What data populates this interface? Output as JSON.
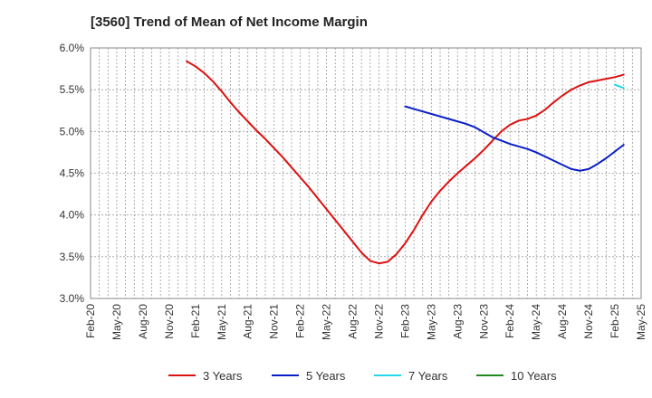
{
  "chart_title": "[3560]  Trend of Mean of Net Income Margin",
  "chart_data": {
    "type": "line",
    "title": "[3560]  Trend of Mean of Net Income Margin",
    "xlabel": "",
    "ylabel": "",
    "x_tick_labels": [
      "Feb-20",
      "May-20",
      "Aug-20",
      "Nov-20",
      "Feb-21",
      "May-21",
      "Aug-21",
      "Nov-21",
      "Feb-22",
      "May-22",
      "Aug-22",
      "Nov-22",
      "Feb-23",
      "May-23",
      "Aug-23",
      "Nov-23",
      "Feb-24",
      "May-24",
      "Aug-24",
      "Nov-24",
      "Feb-25",
      "May-25"
    ],
    "y_tick_labels": [
      "3.0%",
      "3.5%",
      "4.0%",
      "4.5%",
      "5.0%",
      "5.5%",
      "6.0%"
    ],
    "ylim": [
      3.0,
      6.0
    ],
    "xlim": [
      "2020-02",
      "2025-05"
    ],
    "grid": true,
    "legend_position": "bottom",
    "series": [
      {
        "name": "3 Years",
        "color": "#dd1111",
        "points": [
          [
            "2021-01",
            5.84
          ],
          [
            "2021-02",
            5.78
          ],
          [
            "2021-03",
            5.7
          ],
          [
            "2021-04",
            5.6
          ],
          [
            "2021-05",
            5.48
          ],
          [
            "2021-06",
            5.35
          ],
          [
            "2021-07",
            5.23
          ],
          [
            "2021-08",
            5.12
          ],
          [
            "2021-09",
            5.01
          ],
          [
            "2021-10",
            4.91
          ],
          [
            "2021-11",
            4.8
          ],
          [
            "2021-12",
            4.69
          ],
          [
            "2022-01",
            4.57
          ],
          [
            "2022-02",
            4.45
          ],
          [
            "2022-03",
            4.33
          ],
          [
            "2022-04",
            4.2
          ],
          [
            "2022-05",
            4.07
          ],
          [
            "2022-06",
            3.94
          ],
          [
            "2022-07",
            3.81
          ],
          [
            "2022-08",
            3.68
          ],
          [
            "2022-09",
            3.55
          ],
          [
            "2022-10",
            3.45
          ],
          [
            "2022-11",
            3.42
          ],
          [
            "2022-12",
            3.44
          ],
          [
            "2023-01",
            3.53
          ],
          [
            "2023-02",
            3.66
          ],
          [
            "2023-03",
            3.82
          ],
          [
            "2023-04",
            4.0
          ],
          [
            "2023-05",
            4.16
          ],
          [
            "2023-06",
            4.29
          ],
          [
            "2023-07",
            4.4
          ],
          [
            "2023-08",
            4.5
          ],
          [
            "2023-09",
            4.59
          ],
          [
            "2023-10",
            4.68
          ],
          [
            "2023-11",
            4.78
          ],
          [
            "2023-12",
            4.89
          ],
          [
            "2024-01",
            5.0
          ],
          [
            "2024-02",
            5.08
          ],
          [
            "2024-03",
            5.13
          ],
          [
            "2024-04",
            5.15
          ],
          [
            "2024-05",
            5.19
          ],
          [
            "2024-06",
            5.26
          ],
          [
            "2024-07",
            5.35
          ],
          [
            "2024-08",
            5.43
          ],
          [
            "2024-09",
            5.5
          ],
          [
            "2024-10",
            5.55
          ],
          [
            "2024-11",
            5.59
          ],
          [
            "2024-12",
            5.61
          ],
          [
            "2025-01",
            5.63
          ],
          [
            "2025-02",
            5.65
          ],
          [
            "2025-03",
            5.68
          ]
        ]
      },
      {
        "name": "5 Years",
        "color": "#0a1ec8",
        "points": [
          [
            "2023-02",
            5.3
          ],
          [
            "2023-03",
            5.27
          ],
          [
            "2023-04",
            5.24
          ],
          [
            "2023-05",
            5.21
          ],
          [
            "2023-06",
            5.18
          ],
          [
            "2023-07",
            5.15
          ],
          [
            "2023-08",
            5.12
          ],
          [
            "2023-09",
            5.09
          ],
          [
            "2023-10",
            5.05
          ],
          [
            "2023-11",
            4.99
          ],
          [
            "2023-12",
            4.93
          ],
          [
            "2024-01",
            4.89
          ],
          [
            "2024-02",
            4.85
          ],
          [
            "2024-03",
            4.82
          ],
          [
            "2024-04",
            4.79
          ],
          [
            "2024-05",
            4.75
          ],
          [
            "2024-06",
            4.7
          ],
          [
            "2024-07",
            4.65
          ],
          [
            "2024-08",
            4.6
          ],
          [
            "2024-09",
            4.55
          ],
          [
            "2024-10",
            4.53
          ],
          [
            "2024-11",
            4.55
          ],
          [
            "2024-12",
            4.61
          ],
          [
            "2025-01",
            4.68
          ],
          [
            "2025-02",
            4.76
          ],
          [
            "2025-03",
            4.84
          ]
        ]
      },
      {
        "name": "7 Years",
        "color": "#22d8e8",
        "points": [
          [
            "2025-02",
            5.56
          ],
          [
            "2025-03",
            5.52
          ]
        ]
      },
      {
        "name": "10 Years",
        "color": "#1e8a1e",
        "points": []
      }
    ]
  }
}
